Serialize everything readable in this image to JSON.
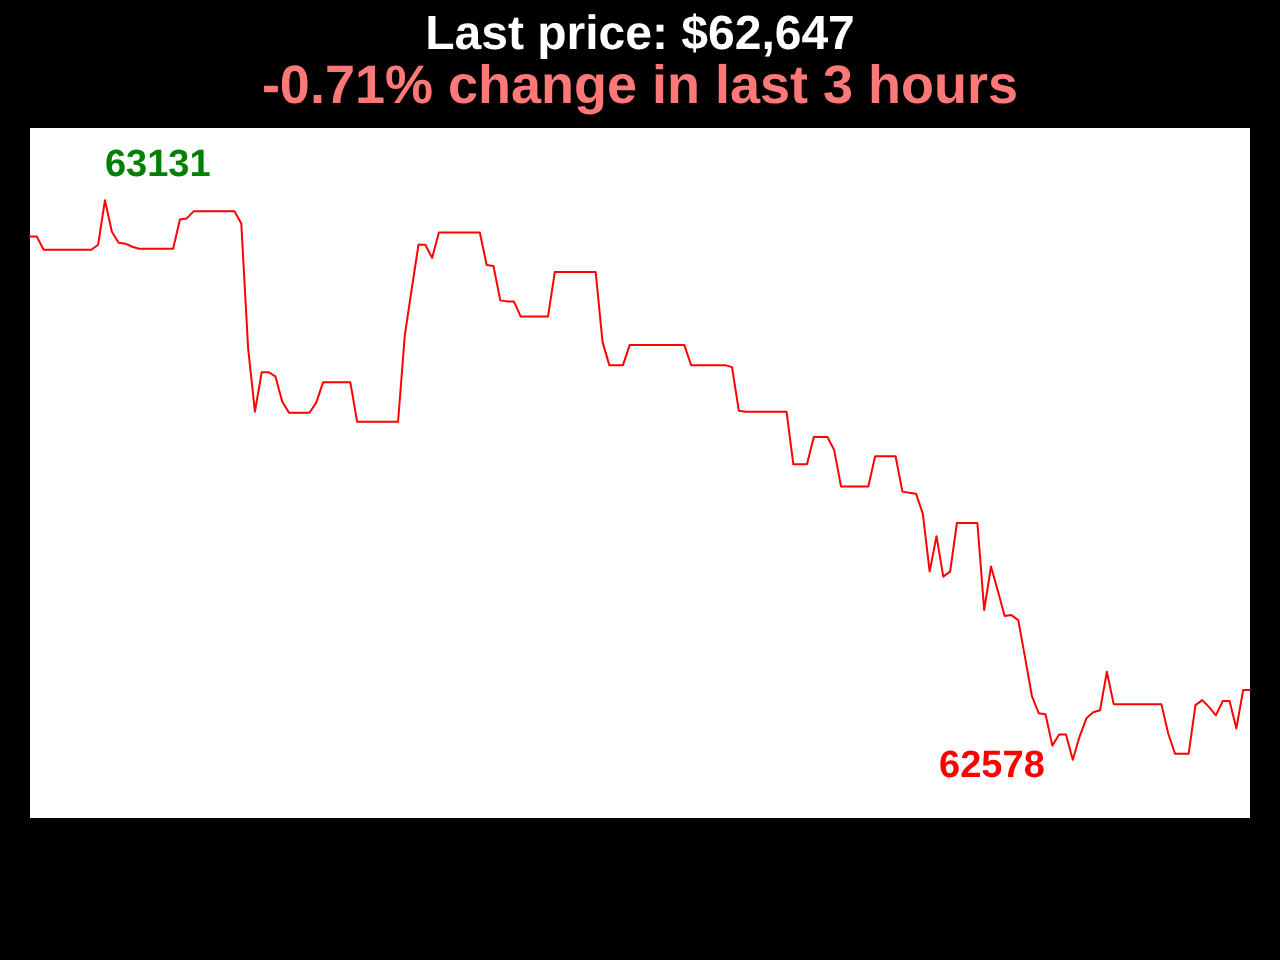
{
  "chart_data": {
    "type": "line",
    "title": "Last price: $62,647",
    "subtitle": "-0.71% change in last 3 hours",
    "categories": [
      null,
      null,
      null,
      null,
      null,
      null,
      null,
      null,
      null,
      null,
      null,
      null,
      null,
      null,
      null,
      null,
      null,
      null,
      null,
      null,
      null,
      null,
      null,
      null,
      null,
      null,
      null,
      null,
      null,
      null,
      null,
      null,
      null,
      null,
      null,
      null,
      null,
      null,
      null,
      null,
      null,
      null,
      null,
      null,
      null,
      null,
      null,
      null,
      null,
      null,
      null,
      null,
      null,
      null,
      null,
      null,
      null,
      null,
      null,
      null,
      null,
      null,
      null,
      null,
      null,
      null,
      null,
      null,
      null,
      null,
      null,
      null,
      null,
      null,
      null,
      null,
      null,
      null,
      null,
      null,
      null,
      null,
      null,
      null,
      null,
      null,
      null,
      null,
      null,
      null,
      null,
      null,
      null,
      null,
      null,
      null,
      null,
      null,
      null,
      null,
      null,
      null,
      null,
      null,
      null,
      null,
      null,
      null,
      null,
      null,
      null,
      null,
      null,
      null,
      null,
      null,
      null,
      null,
      null,
      null,
      null,
      null,
      null,
      null,
      null,
      null,
      null,
      null,
      null,
      null,
      null,
      null,
      null,
      null,
      null,
      null,
      null,
      null,
      null,
      null,
      null,
      null,
      null,
      null,
      null,
      null,
      null,
      null,
      null,
      null,
      null,
      null,
      null,
      null,
      null,
      null,
      null,
      null,
      null,
      null,
      null,
      null,
      null,
      null,
      null,
      null,
      null,
      null,
      null,
      null,
      null,
      null,
      null,
      null,
      null,
      null,
      null,
      null,
      null,
      null
    ],
    "series": [
      {
        "color": "#ff0000",
        "values": [
          63095,
          63095,
          63082,
          63082,
          63082,
          63082,
          63082,
          63082,
          63082,
          63082,
          63087,
          63131,
          63100,
          63089,
          63088,
          63085,
          63083,
          63083,
          63083,
          63083,
          63083,
          63083,
          63112,
          63113,
          63120,
          63120,
          63120,
          63120,
          63120,
          63120,
          63120,
          63108,
          62985,
          62922,
          62961,
          62961,
          62957,
          62932,
          62921,
          62921,
          62921,
          62921,
          62931,
          62951,
          62951,
          62951,
          62951,
          62951,
          62912,
          62912,
          62912,
          62912,
          62912,
          62912,
          62912,
          62998,
          63043,
          63087,
          63087,
          63074,
          63099,
          63099,
          63099,
          63099,
          63099,
          63099,
          63099,
          63067,
          63066,
          63032,
          63031,
          63031,
          63016,
          63016,
          63016,
          63016,
          63016,
          63060,
          63060,
          63060,
          63060,
          63060,
          63060,
          63060,
          62991,
          62968,
          62968,
          62968,
          62988,
          62988,
          62988,
          62988,
          62988,
          62988,
          62988,
          62988,
          62988,
          62968,
          62968,
          62968,
          62968,
          62968,
          62968,
          62966,
          62923,
          62922,
          62922,
          62922,
          62922,
          62922,
          62922,
          62922,
          62870,
          62870,
          62870,
          62897,
          62897,
          62897,
          62884,
          62848,
          62848,
          62848,
          62848,
          62848,
          62878,
          62878,
          62878,
          62878,
          62843,
          62842,
          62841,
          62821,
          62764,
          62799,
          62759,
          62764,
          62812,
          62812,
          62812,
          62812,
          62726,
          62769,
          62745,
          62720,
          62721,
          62716,
          62679,
          62641,
          62624,
          62623,
          62592,
          62603,
          62603,
          62578,
          62601,
          62619,
          62625,
          62627,
          62665,
          62633,
          62633,
          62633,
          62633,
          62633,
          62633,
          62633,
          62633,
          62604,
          62584,
          62584,
          62584,
          62632,
          62637,
          62630,
          62622,
          62636,
          62636,
          62609,
          62647,
          62647
        ],
        "value_labels": [
          null,
          null,
          null,
          null,
          null,
          null,
          null,
          null,
          null,
          null,
          null,
          "63131",
          null,
          null,
          null,
          null,
          null,
          null,
          null,
          null,
          null,
          null,
          null,
          null,
          null,
          null,
          null,
          null,
          null,
          null,
          null,
          null,
          null,
          null,
          null,
          null,
          null,
          null,
          null,
          null,
          null,
          null,
          null,
          null,
          null,
          null,
          null,
          null,
          null,
          null,
          null,
          null,
          null,
          null,
          null,
          null,
          null,
          null,
          null,
          null,
          null,
          null,
          null,
          null,
          null,
          null,
          null,
          null,
          null,
          null,
          null,
          null,
          null,
          null,
          null,
          null,
          null,
          null,
          null,
          null,
          null,
          null,
          null,
          null,
          null,
          null,
          null,
          null,
          null,
          null,
          null,
          null,
          null,
          null,
          null,
          null,
          null,
          null,
          null,
          null,
          null,
          null,
          null,
          null,
          null,
          null,
          null,
          null,
          null,
          null,
          null,
          null,
          null,
          null,
          null,
          null,
          null,
          null,
          null,
          null,
          null,
          null,
          null,
          null,
          null,
          null,
          null,
          null,
          null,
          null,
          null,
          null,
          null,
          null,
          null,
          null,
          null,
          null,
          null,
          null,
          null,
          null,
          null,
          null,
          null,
          null,
          null,
          null,
          null,
          null,
          null,
          null,
          null,
          "62578",
          null,
          null,
          null,
          null,
          null,
          null,
          null,
          null,
          null,
          null,
          null,
          null,
          null,
          null,
          null,
          null,
          null,
          null,
          null,
          null,
          null,
          null,
          null,
          null,
          null,
          null
        ]
      }
    ]
  }
}
